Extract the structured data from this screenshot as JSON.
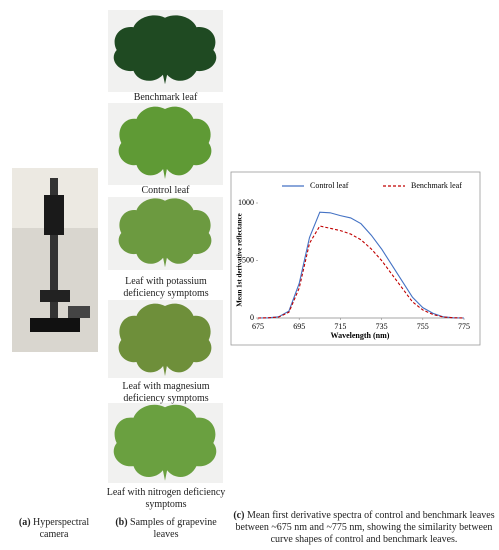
{
  "panels": {
    "a": {
      "label": "(a)",
      "caption": "Hyperspectral camera"
    },
    "b": {
      "label": "(b)",
      "caption": "Samples of grapevine leaves",
      "leaves": [
        "Benchmark leaf",
        "Control leaf",
        "Leaf with potassium deficiency symptoms",
        "Leaf with magnesium deficiency symptoms",
        "Leaf with nitrogen deficiency symptoms"
      ]
    },
    "c": {
      "label": "(c)",
      "caption": "Mean first derivative spectra of control and benchmark leaves between ~675 nm and ~775 nm, showing the similarity between curve shapes of control and benchmark leaves."
    }
  },
  "chart_data": {
    "type": "line",
    "xlabel": "Wavelength (nm)",
    "ylabel": "Mean 1st derivative reflectance",
    "x": [
      675,
      680,
      685,
      690,
      695,
      700,
      705,
      710,
      715,
      720,
      725,
      730,
      735,
      740,
      745,
      750,
      755,
      760,
      765,
      770,
      775
    ],
    "series": [
      {
        "name": "Control leaf",
        "color": "#4472c4",
        "dash": "solid",
        "values": [
          0,
          2,
          10,
          60,
          300,
          700,
          920,
          915,
          890,
          870,
          820,
          720,
          600,
          460,
          320,
          180,
          90,
          40,
          10,
          2,
          0
        ]
      },
      {
        "name": "Benchmark leaf",
        "color": "#c00000",
        "dash": "dashed",
        "values": [
          0,
          2,
          8,
          50,
          260,
          650,
          800,
          780,
          760,
          730,
          680,
          600,
          500,
          380,
          260,
          140,
          70,
          30,
          8,
          2,
          0
        ]
      }
    ],
    "xlim": [
      675,
      775
    ],
    "xticks": [
      675,
      695,
      715,
      735,
      755,
      775
    ],
    "ylim": [
      0,
      1000
    ],
    "yticks": [
      0,
      500,
      1000
    ],
    "legend": "top"
  }
}
